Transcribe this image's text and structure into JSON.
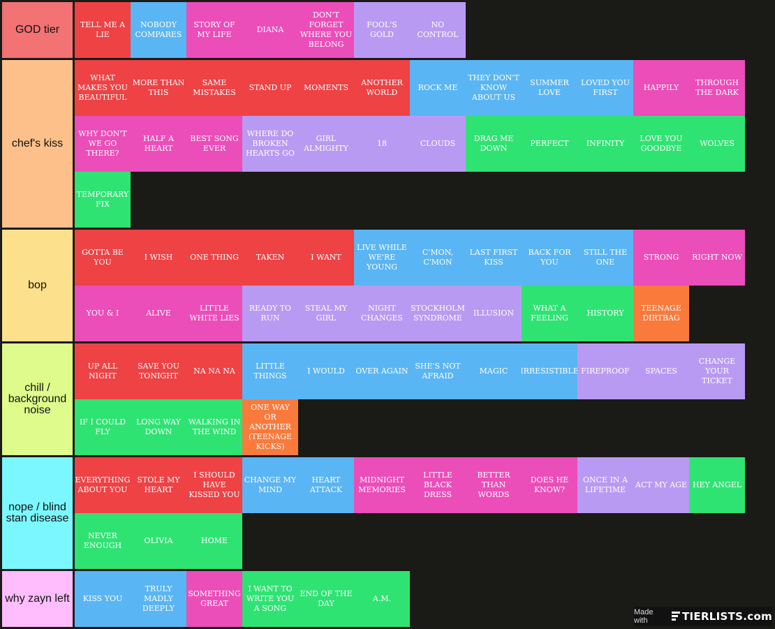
{
  "tiers": [
    {
      "label": "GOD tier",
      "color": "#f37274",
      "items": [
        {
          "t": "TELL ME A LIE",
          "c": "red"
        },
        {
          "t": "NOBODY COMPARES",
          "c": "blue"
        },
        {
          "t": "STORY OF MY LIFE",
          "c": "pink"
        },
        {
          "t": "DIANA",
          "c": "pink"
        },
        {
          "t": "DON'T FORGET WHERE YOU BELONG",
          "c": "pink"
        },
        {
          "t": "FOOL'S GOLD",
          "c": "purple"
        },
        {
          "t": "NO CONTROL",
          "c": "purple"
        }
      ]
    },
    {
      "label": "chef's kiss",
      "color": "#fdc08a",
      "items": [
        {
          "t": "WHAT MAKES YOU BEAUTIFUL",
          "c": "red"
        },
        {
          "t": "MORE THAN THIS",
          "c": "red"
        },
        {
          "t": "SAME MISTAKES",
          "c": "red"
        },
        {
          "t": "STAND UP",
          "c": "red"
        },
        {
          "t": "MOMENTS",
          "c": "red"
        },
        {
          "t": "ANOTHER WORLD",
          "c": "red"
        },
        {
          "t": "ROCK ME",
          "c": "blue"
        },
        {
          "t": "THEY DON'T KNOW ABOUT US",
          "c": "blue"
        },
        {
          "t": "SUMMER LOVE",
          "c": "blue"
        },
        {
          "t": "LOVED YOU FIRST",
          "c": "blue"
        },
        {
          "t": "HAPPILY",
          "c": "pink"
        },
        {
          "t": "THROUGH THE DARK",
          "c": "pink"
        },
        {
          "t": "WHY DON'T WE GO THERE?",
          "c": "pink"
        },
        {
          "t": "HALF A HEART",
          "c": "pink"
        },
        {
          "t": "BEST SONG EVER",
          "c": "pink"
        },
        {
          "t": "WHERE DO BROKEN HEARTS GO",
          "c": "purple"
        },
        {
          "t": "GIRL ALMIGHTY",
          "c": "purple"
        },
        {
          "t": "18",
          "c": "purple"
        },
        {
          "t": "CLOUDS",
          "c": "purple"
        },
        {
          "t": "DRAG ME DOWN",
          "c": "green"
        },
        {
          "t": "PERFECT",
          "c": "green"
        },
        {
          "t": "INFINITY",
          "c": "green"
        },
        {
          "t": "LOVE YOU GOODBYE",
          "c": "green"
        },
        {
          "t": "WOLVES",
          "c": "green"
        },
        {
          "t": "TEMPORARY FIX",
          "c": "green"
        }
      ]
    },
    {
      "label": "bop",
      "color": "#fde08c",
      "items": [
        {
          "t": "GOTTA BE YOU",
          "c": "red"
        },
        {
          "t": "I WISH",
          "c": "red"
        },
        {
          "t": "ONE THING",
          "c": "red"
        },
        {
          "t": "TAKEN",
          "c": "red"
        },
        {
          "t": "I WANT",
          "c": "red"
        },
        {
          "t": "LIVE WHILE WE'RE YOUNG",
          "c": "blue"
        },
        {
          "t": "C'MON, C'MON",
          "c": "blue"
        },
        {
          "t": "LAST FIRST KISS",
          "c": "blue"
        },
        {
          "t": "BACK FOR YOU",
          "c": "blue"
        },
        {
          "t": "STILL THE ONE",
          "c": "blue"
        },
        {
          "t": "STRONG",
          "c": "pink"
        },
        {
          "t": "RIGHT NOW",
          "c": "pink"
        },
        {
          "t": "YOU & I",
          "c": "pink"
        },
        {
          "t": "ALIVE",
          "c": "pink"
        },
        {
          "t": "LITTLE WHITE LIES",
          "c": "pink"
        },
        {
          "t": "READY TO RUN",
          "c": "purple"
        },
        {
          "t": "STEAL MY GIRL",
          "c": "purple"
        },
        {
          "t": "NIGHT CHANGES",
          "c": "purple"
        },
        {
          "t": "STOCKHOLM SYNDROME",
          "c": "purple"
        },
        {
          "t": "ILLUSION",
          "c": "purple"
        },
        {
          "t": "WHAT A FEELING",
          "c": "green"
        },
        {
          "t": "HISTORY",
          "c": "green"
        },
        {
          "t": "TEENAGE DIRTBAG",
          "c": "orange"
        }
      ]
    },
    {
      "label": "chill / background noise",
      "color": "#defb8c",
      "items": [
        {
          "t": "UP ALL NIGHT",
          "c": "red"
        },
        {
          "t": "SAVE YOU TONIGHT",
          "c": "red"
        },
        {
          "t": "NA NA NA",
          "c": "red"
        },
        {
          "t": "LITTLE THINGS",
          "c": "blue"
        },
        {
          "t": "I WOULD",
          "c": "blue"
        },
        {
          "t": "OVER AGAIN",
          "c": "blue"
        },
        {
          "t": "SHE'S NOT AFRAID",
          "c": "blue"
        },
        {
          "t": "MAGIC",
          "c": "blue"
        },
        {
          "t": "IRRESISTIBLE",
          "c": "blue"
        },
        {
          "t": "FIREPROOF",
          "c": "purple"
        },
        {
          "t": "SPACES",
          "c": "purple"
        },
        {
          "t": "CHANGE YOUR TICKET",
          "c": "purple"
        },
        {
          "t": "IF I COULD FLY",
          "c": "green"
        },
        {
          "t": "LONG WAY DOWN",
          "c": "green"
        },
        {
          "t": "WALKING IN THE WIND",
          "c": "green"
        },
        {
          "t": "ONE WAY OR ANOTHER (TEENAGE KICKS)",
          "c": "orange"
        }
      ]
    },
    {
      "label": "nope / blind stan disease",
      "color": "#7bf8ff",
      "items": [
        {
          "t": "EVERYTHING ABOUT YOU",
          "c": "red"
        },
        {
          "t": "STOLE MY HEART",
          "c": "red"
        },
        {
          "t": "I SHOULD HAVE KISSED YOU",
          "c": "red"
        },
        {
          "t": "CHANGE MY MIND",
          "c": "blue"
        },
        {
          "t": "HEART ATTACK",
          "c": "blue"
        },
        {
          "t": "MIDNIGHT MEMORIES",
          "c": "pink"
        },
        {
          "t": "LITTLE BLACK DRESS",
          "c": "pink"
        },
        {
          "t": "BETTER THAN WORDS",
          "c": "pink"
        },
        {
          "t": "DOES HE KNOW?",
          "c": "pink"
        },
        {
          "t": "ONCE IN A LIFETIME",
          "c": "purple"
        },
        {
          "t": "ACT MY AGE",
          "c": "purple"
        },
        {
          "t": "HEY ANGEL",
          "c": "green"
        },
        {
          "t": "NEVER ENOUGH",
          "c": "green"
        },
        {
          "t": "OLIVIA",
          "c": "green"
        },
        {
          "t": "HOME",
          "c": "green"
        }
      ]
    },
    {
      "label": "why zayn left",
      "color": "#ffbdfe",
      "items": [
        {
          "t": "KISS YOU",
          "c": "blue"
        },
        {
          "t": "TRULY MADLY DEEPLY",
          "c": "blue"
        },
        {
          "t": "SOMETHING GREAT",
          "c": "pink"
        },
        {
          "t": "I WANT TO WRITE YOU A SONG",
          "c": "green"
        },
        {
          "t": "END OF THE DAY",
          "c": "green"
        },
        {
          "t": "A.M.",
          "c": "green"
        }
      ]
    }
  ],
  "footer": {
    "made_with": "Made with",
    "logo": "TIERLISTS.com",
    "logo_icon": "tierlists-logo-icon"
  }
}
